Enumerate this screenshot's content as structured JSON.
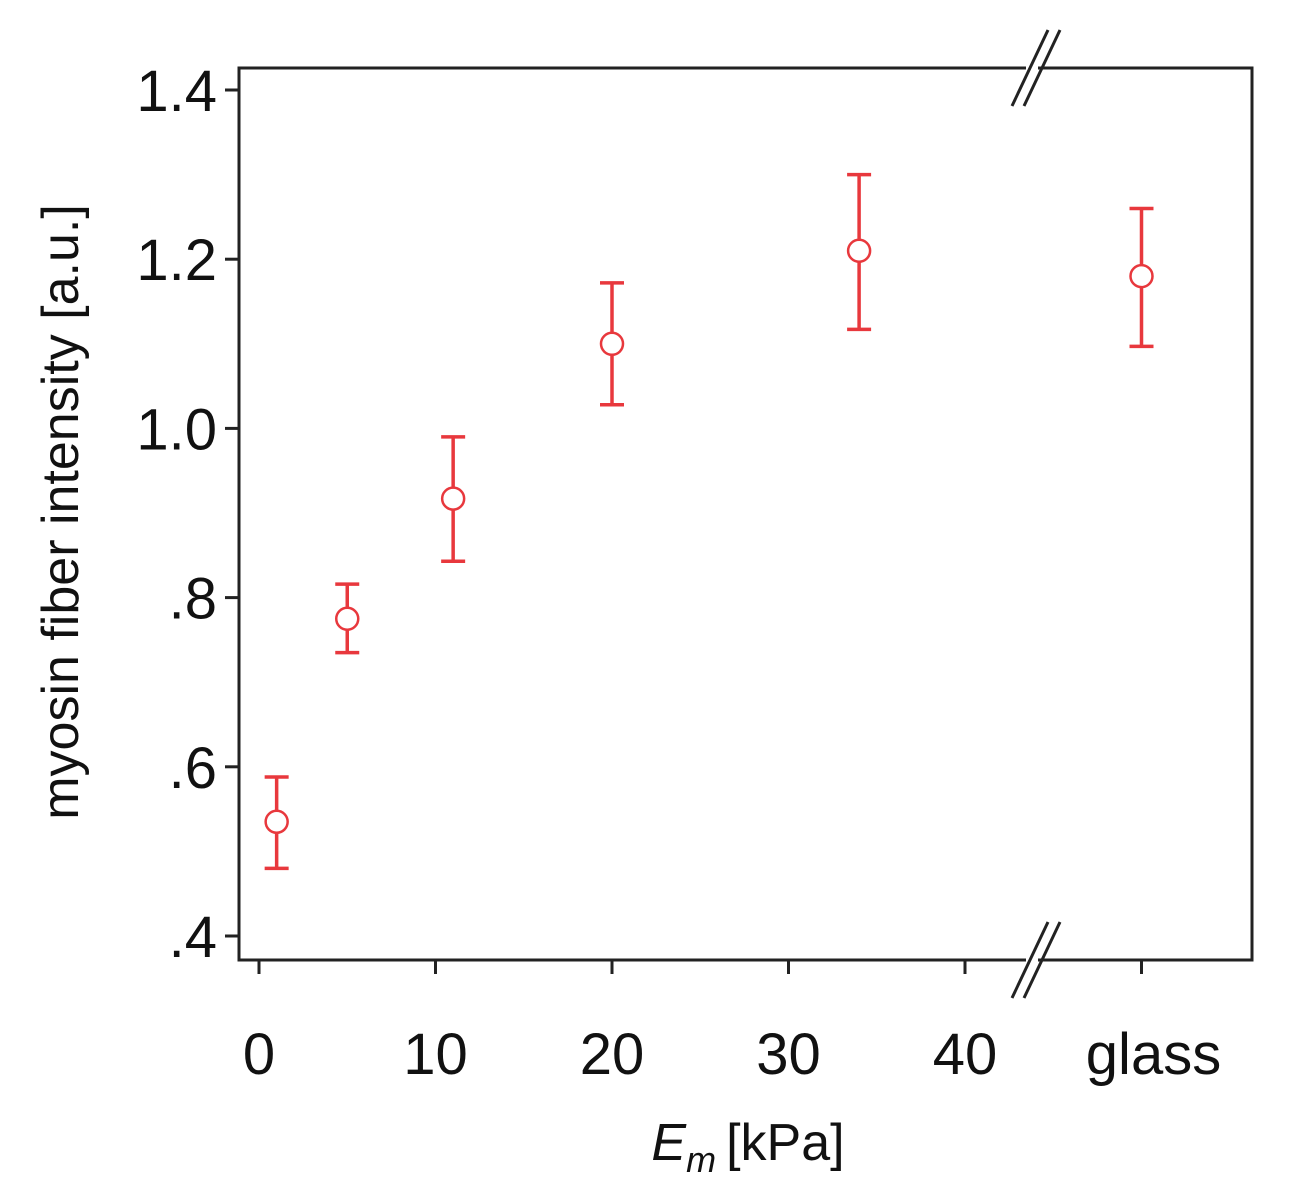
{
  "chart_data": {
    "type": "scatter",
    "xlabel": {
      "symbol": "E",
      "subscript": "m",
      "unit": "[kPa]"
    },
    "ylabel": "myosin fiber intensity [a.u.]",
    "xlim": [
      -1,
      46
    ],
    "ylim": [
      0.375,
      1.4
    ],
    "x_ticks": [
      0,
      10,
      20,
      30,
      40
    ],
    "x_tick_labels": [
      "0",
      "10",
      "20",
      "30",
      "40"
    ],
    "x_category": {
      "x": 50,
      "label": "glass"
    },
    "y_ticks": [
      0.4,
      0.6,
      0.8,
      1.0,
      1.2,
      1.4
    ],
    "y_tick_labels": [
      ".4",
      ".6",
      ".8",
      "1.0",
      "1.2",
      "1.4"
    ],
    "axis_break": true,
    "grid": false,
    "marker": "open-circle",
    "color": "#e8383d",
    "points": [
      {
        "x": 1,
        "y": 0.535,
        "err_low": 0.48,
        "err_high": 0.588
      },
      {
        "x": 5,
        "y": 0.775,
        "err_low": 0.735,
        "err_high": 0.816
      },
      {
        "x": 11,
        "y": 0.917,
        "err_low": 0.843,
        "err_high": 0.99
      },
      {
        "x": 20,
        "y": 1.1,
        "err_low": 1.028,
        "err_high": 1.172
      },
      {
        "x": 34,
        "y": 1.21,
        "err_low": 1.117,
        "err_high": 1.3
      },
      {
        "x": "glass",
        "y": 1.18,
        "err_low": 1.097,
        "err_high": 1.26
      }
    ]
  }
}
